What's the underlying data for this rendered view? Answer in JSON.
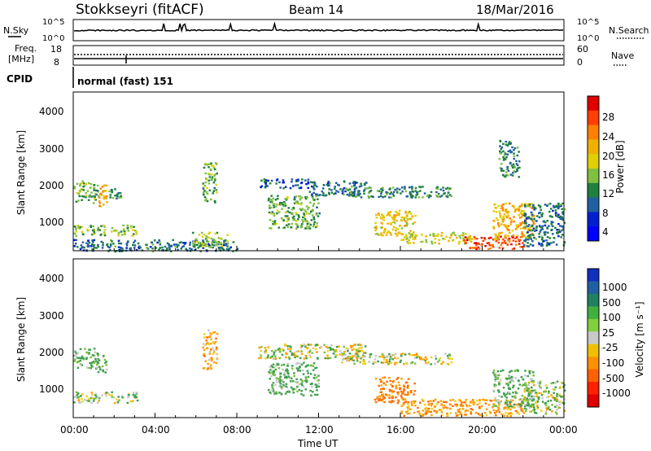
{
  "header": {
    "site": "Stokkseyri (fitACF)",
    "beam": "Beam 14",
    "date": "18/Mar/2016"
  },
  "noise_panel": {
    "left_label": "N.Sky",
    "left_ticks": [
      "10^5",
      "10^0"
    ],
    "right_label": "N.Search",
    "right_ticks": [
      "10^5",
      "10^0"
    ]
  },
  "freq_panel": {
    "left_label_1": "Freq.",
    "left_label_2": "[MHz]",
    "left_ticks": [
      "18",
      "8"
    ],
    "right_label": "Nave",
    "right_ticks": [
      "60",
      "0"
    ]
  },
  "cpid": {
    "label": "CPID",
    "mode": "normal (fast) 151"
  },
  "x_axis": {
    "title": "Time UT",
    "ticks": [
      "00:00",
      "04:00",
      "08:00",
      "12:00",
      "16:00",
      "20:00",
      "00:00"
    ]
  },
  "power_panel": {
    "ylabel": "Slant Range [km]",
    "yticks": [
      "4000",
      "3000",
      "2000",
      "1000"
    ],
    "colorbar_label": "Power [dB]",
    "colorbar_ticks": [
      "28",
      "24",
      "20",
      "16",
      "12",
      "8",
      "4"
    ],
    "colorbar_colors": [
      "#e00000",
      "#ff4000",
      "#ff8000",
      "#f0b000",
      "#e0d000",
      "#80c040",
      "#208040",
      "#2060a0",
      "#0020d0",
      "#0000ff"
    ]
  },
  "velocity_panel": {
    "ylabel": "Slant Range [km]",
    "yticks": [
      "4000",
      "3000",
      "2000",
      "1000"
    ],
    "colorbar_label": "Velocity [m s⁻¹]",
    "colorbar_ticks": [
      "1000",
      "500",
      "100",
      "25",
      "-25",
      "-100",
      "-500",
      "-1000"
    ],
    "colorbar_colors": [
      "#1030c0",
      "#2060a0",
      "#208060",
      "#40b040",
      "#80d040",
      "#c8c8c8",
      "#f0c000",
      "#ff9000",
      "#ff6000",
      "#ff2000",
      "#e00000"
    ]
  },
  "chart_data": {
    "type": "heatmap",
    "x_range_hours": [
      0,
      24
    ],
    "y_range_km": [
      180,
      4500
    ],
    "power_regions": [
      {
        "t": [
          0.0,
          1.2
        ],
        "r": [
          1500,
          2100
        ],
        "dB": 12
      },
      {
        "t": [
          1.1,
          1.6
        ],
        "r": [
          1400,
          2000
        ],
        "dB": 20
      },
      {
        "t": [
          1.7,
          2.3
        ],
        "r": [
          1600,
          1900
        ],
        "dB": 10
      },
      {
        "t": [
          0.0,
          3.1
        ],
        "r": [
          600,
          900
        ],
        "dB": 14
      },
      {
        "t": [
          0.0,
          8.0
        ],
        "r": [
          180,
          500
        ],
        "dB": 8
      },
      {
        "t": [
          6.3,
          7.0
        ],
        "r": [
          1500,
          2600
        ],
        "dB": 12
      },
      {
        "t": [
          5.8,
          7.5
        ],
        "r": [
          300,
          700
        ],
        "dB": 14
      },
      {
        "t": [
          9.0,
          11.8
        ],
        "r": [
          1900,
          2150
        ],
        "dB": 6
      },
      {
        "t": [
          9.5,
          12.0
        ],
        "r": [
          800,
          1700
        ],
        "dB": 12
      },
      {
        "t": [
          11.5,
          14.3
        ],
        "r": [
          1700,
          2100
        ],
        "dB": 8
      },
      {
        "t": [
          13.0,
          18.5
        ],
        "r": [
          1650,
          1950
        ],
        "dB": 10
      },
      {
        "t": [
          14.7,
          16.7
        ],
        "r": [
          600,
          1300
        ],
        "dB": 18
      },
      {
        "t": [
          16.0,
          19.5
        ],
        "r": [
          400,
          700
        ],
        "dB": 16
      },
      {
        "t": [
          19.0,
          22.0
        ],
        "r": [
          250,
          600
        ],
        "dB": 26
      },
      {
        "t": [
          20.5,
          22.5
        ],
        "r": [
          500,
          1500
        ],
        "dB": 20
      },
      {
        "t": [
          20.8,
          21.8
        ],
        "r": [
          2200,
          3200
        ],
        "dB": 10
      },
      {
        "t": [
          22.0,
          24.0
        ],
        "r": [
          300,
          1500
        ],
        "dB": 8
      }
    ],
    "velocity_regions": [
      {
        "t": [
          0.0,
          1.2
        ],
        "r": [
          1500,
          2100
        ],
        "v": 100
      },
      {
        "t": [
          1.1,
          1.6
        ],
        "r": [
          1400,
          2000
        ],
        "v": 100
      },
      {
        "t": [
          0.0,
          3.1
        ],
        "r": [
          600,
          900
        ],
        "v": 25
      },
      {
        "t": [
          6.3,
          7.0
        ],
        "r": [
          1500,
          2600
        ],
        "v": -100
      },
      {
        "t": [
          9.0,
          14.3
        ],
        "r": [
          1800,
          2200
        ],
        "v": 0
      },
      {
        "t": [
          9.5,
          12.0
        ],
        "r": [
          800,
          1700
        ],
        "v": 100
      },
      {
        "t": [
          13.0,
          18.5
        ],
        "r": [
          1650,
          1950
        ],
        "v": 0
      },
      {
        "t": [
          14.7,
          16.7
        ],
        "r": [
          600,
          1300
        ],
        "v": -250
      },
      {
        "t": [
          16.0,
          22.0
        ],
        "r": [
          250,
          700
        ],
        "v": -150
      },
      {
        "t": [
          20.5,
          22.5
        ],
        "r": [
          500,
          1500
        ],
        "v": 100
      },
      {
        "t": [
          22.0,
          24.0
        ],
        "r": [
          300,
          1200
        ],
        "v": 25
      }
    ]
  }
}
